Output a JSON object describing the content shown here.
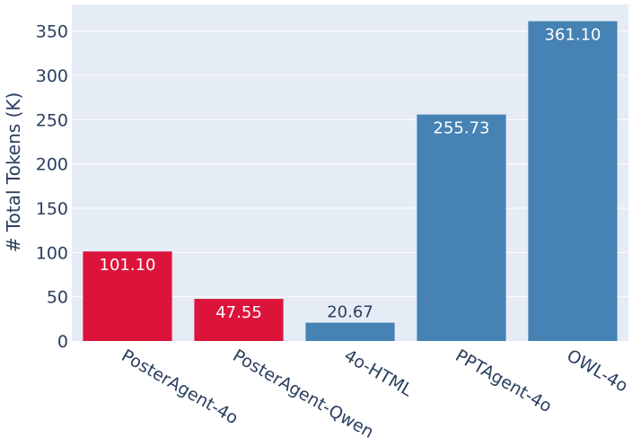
{
  "chart_data": {
    "type": "bar",
    "categories": [
      "PosterAgent-4o",
      "PosterAgent-Qwen",
      "4o-HTML",
      "PPTAgent-4o",
      "OWL-4o"
    ],
    "values": [
      101.1,
      47.55,
      20.67,
      255.73,
      361.1
    ],
    "value_labels": [
      "101.10",
      "47.55",
      "20.67",
      "255.73",
      "361.10"
    ],
    "bar_colors": [
      "#dc143c",
      "#dc143c",
      "#4682b4",
      "#4682b4",
      "#4682b4"
    ],
    "title": "",
    "xlabel": "",
    "ylabel": "# Total Tokens (K)",
    "ylim": [
      0,
      380
    ],
    "yticks": [
      0,
      50,
      100,
      150,
      200,
      250,
      300,
      350
    ],
    "grid": true,
    "plot_background": "#e5ecf6",
    "grid_color": "#ffffff",
    "text_color": "#2a3f5f",
    "x_tick_rotation": 30
  }
}
